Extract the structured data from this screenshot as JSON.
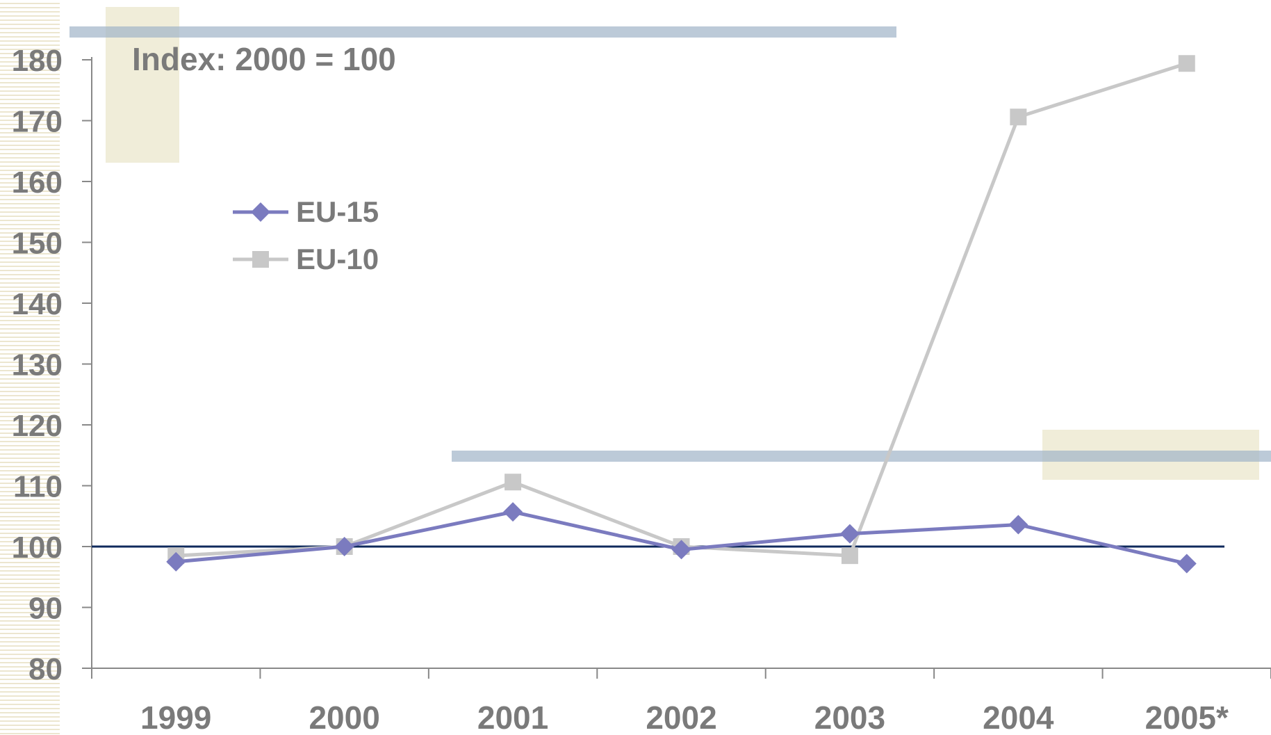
{
  "chart_data": {
    "type": "line",
    "title": "Index: 2000 = 100",
    "xlabel": "",
    "ylabel": "",
    "categories": [
      "1999",
      "2000",
      "2001",
      "2002",
      "2003",
      "2004",
      "2005*"
    ],
    "series": [
      {
        "name": "EU-15",
        "values": [
          97.5,
          100,
          105.7,
          99.5,
          102.1,
          103.6,
          97.2
        ],
        "color": "#7b7bbf",
        "marker": "diamond"
      },
      {
        "name": "EU-10",
        "values": [
          98.5,
          100,
          110.6,
          100.0,
          98.5,
          170.6,
          179.4
        ],
        "color": "#c8c8c8",
        "marker": "square"
      }
    ],
    "ylim": [
      80,
      180
    ],
    "yticks": [
      "80",
      "90",
      "100",
      "110",
      "120",
      "130",
      "140",
      "150",
      "160",
      "170",
      "180"
    ],
    "reference_line": {
      "value": 100,
      "color": "#0f2a5c"
    },
    "grid": false,
    "legend": "upper-left"
  },
  "colors": {
    "axis": "#888888",
    "tick_text": "#7a7a7a",
    "deco_blue": "#9fb3c8",
    "deco_beige": "#f0edd9"
  }
}
